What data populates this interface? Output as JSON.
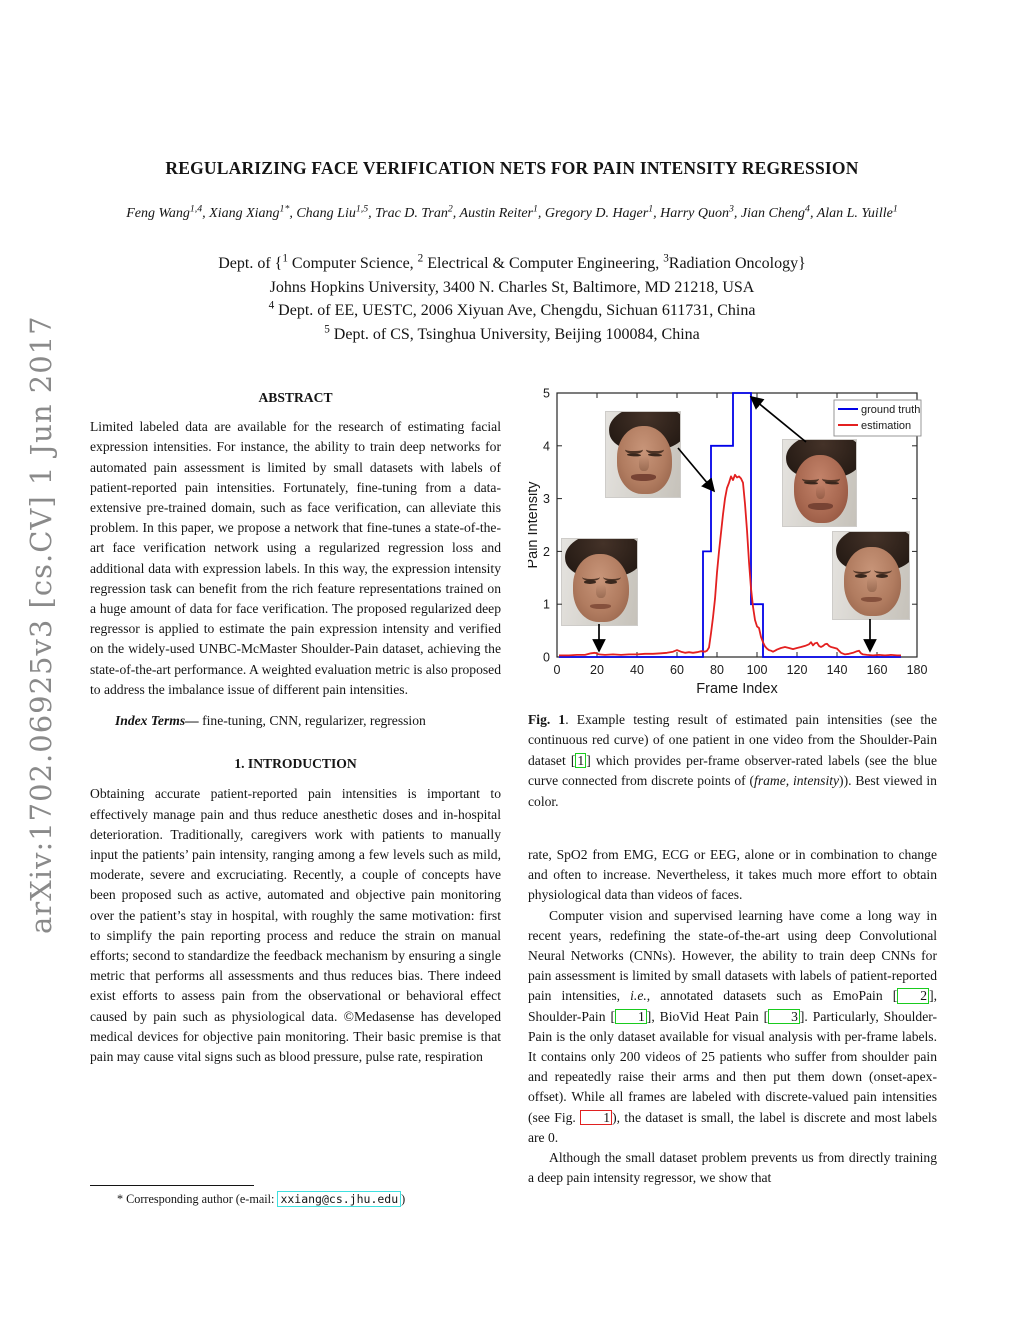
{
  "watermark": {
    "text": "arXiv:1702.06925v3  [cs.CV]  1 Jun 2017"
  },
  "header": {
    "title": "REGULARIZING FACE VERIFICATION NETS FOR PAIN INTENSITY REGRESSION",
    "authors": [
      {
        "name": "Feng Wang",
        "sup": "1,4"
      },
      {
        "name": "Xiang Xiang",
        "sup": "1*"
      },
      {
        "name": "Chang Liu",
        "sup": "1,5"
      },
      {
        "name": "Trac D. Tran",
        "sup": "2"
      },
      {
        "name": "Austin Reiter",
        "sup": "1"
      },
      {
        "name": "Gregory D. Hager",
        "sup": "1"
      },
      {
        "name": "Harry Quon",
        "sup": "3"
      },
      {
        "name": "Jian Cheng",
        "sup": "4"
      },
      {
        "name": "Alan L. Yuille",
        "sup": "1"
      }
    ],
    "affiliations": [
      [
        {
          "t": "Dept. of {"
        },
        {
          "t": "1",
          "sup": true
        },
        {
          "t": " Computer Science, "
        },
        {
          "t": "2",
          "sup": true
        },
        {
          "t": " Electrical & Computer Engineering, "
        },
        {
          "t": "3",
          "sup": true
        },
        {
          "t": "Radiation Oncology}"
        }
      ],
      [
        {
          "t": "Johns Hopkins University, 3400 N. Charles St, Baltimore, MD 21218, USA"
        }
      ],
      [
        {
          "t": "4",
          "sup": true
        },
        {
          "t": " Dept. of EE, UESTC, 2006 Xiyuan Ave, Chengdu, Sichuan 611731, China"
        }
      ],
      [
        {
          "t": "5",
          "sup": true
        },
        {
          "t": " Dept. of CS, Tsinghua University, Beijing 100084, China"
        }
      ]
    ]
  },
  "abstract": {
    "heading": "ABSTRACT",
    "body": "Limited labeled data are available for the research of estimating facial expression intensities. For instance, the ability to train deep networks for automated pain assessment is limited by small datasets with labels of patient-reported pain intensities. Fortunately, fine-tuning from a data-extensive pre-trained domain, such as face verification, can alleviate this problem. In this paper, we propose a network that fine-tunes a state-of-the-art face verification network using a regularized regression loss and additional data with expression labels. In this way, the expression intensity regression task can benefit from the rich feature representations trained on a huge amount of data for face verification. The proposed regularized deep regressor is applied to estimate the pain expression intensity and verified on the widely-used UNBC-McMaster Shoulder-Pain dataset, achieving the state-of-the-art performance. A weighted evaluation metric is also proposed to address the imbalance issue of different pain intensities.",
    "index_terms_label": "Index Terms—",
    "index_terms": " fine-tuning, CNN, regularizer, regression"
  },
  "intro": {
    "heading": "1. INTRODUCTION",
    "para1": "Obtaining accurate patient-reported pain intensities is important to effectively manage pain and thus reduce anesthetic doses and in-hospital deterioration. Traditionally, caregivers work with patients to manually input the patients’ pain intensity, ranging among a few levels such as mild, moderate, severe and excruciating. Recently, a couple of concepts have been proposed such as active, automated and objective pain monitoring over the patient’s stay in hospital, with roughly the same motivation: first to simplify the pain reporting process and reduce the strain on manual efforts; second to standardize the feedback mechanism by ensuring a single metric that performs all assessments and thus reduces bias. There indeed exist efforts to assess pain from the observational or behavioral effect caused by pain such as physiological data. ©Medasense has developed medical devices for objective pain monitoring. Their basic premise is that pain may cause vital signs such as blood pressure, pulse rate, respiration"
  },
  "footnote": {
    "prefix": "* Corresponding author (e-mail: ",
    "email": "xxiang@cs.jhu.edu",
    "suffix": ")"
  },
  "figure": {
    "label": "Fig. 1",
    "caption": [
      {
        "t": "Fig. 1",
        "b": true
      },
      {
        "t": ".  Example testing result of estimated pain intensities (see the continuous red curve) of one patient in one video from the Shoulder-Pain dataset ["
      },
      {
        "t": "1",
        "ref": "green"
      },
      {
        "t": "] which provides per-frame observer-rated labels (see the blue curve connected from discrete points of ("
      },
      {
        "t": "frame, intensity",
        "i": true
      },
      {
        "t": ")). Best viewed in color."
      }
    ],
    "insets": [
      "patient-face-neutral-left",
      "patient-face-onset",
      "patient-face-apex",
      "patient-face-neutral-right"
    ]
  },
  "col2": {
    "p1": [
      {
        "t": "rate, SpO2 from EMG, ECG or EEG, alone or in combination to change and often to increase. Nevertheless, it takes much more effort to obtain physiological data than videos of faces."
      }
    ],
    "p2": [
      {
        "t": "Computer vision and supervised learning have come a long way in recent years, redefining the state-of-the-art using deep Convolutional Neural Networks (CNNs). However, the ability to train deep CNNs for pain assessment is limited by small datasets with labels of patient-reported pain intensities, "
      },
      {
        "t": "i.e.",
        "i": true
      },
      {
        "t": ", annotated datasets such as EmoPain ["
      },
      {
        "t": "2",
        "ref": "green"
      },
      {
        "t": "], Shoulder-Pain ["
      },
      {
        "t": "1",
        "ref": "green"
      },
      {
        "t": "], BioVid Heat Pain ["
      },
      {
        "t": "3",
        "ref": "green"
      },
      {
        "t": "]. Particularly, Shoulder-Pain is the only dataset available for visual analysis with per-frame labels. It contains only 200 videos of 25 patients who suffer from shoulder pain and repeatedly raise their arms and then put them down (onset-apex-offset). While all frames are labeled with discrete-valued pain intensities (see Fig. "
      },
      {
        "t": "1",
        "ref": "red"
      },
      {
        "t": "), the dataset is small, the label is discrete and most labels are 0."
      }
    ],
    "p3": [
      {
        "t": "Although the small dataset problem prevents us from directly training a deep pain intensity regressor, we show that"
      }
    ]
  },
  "chart_data": {
    "type": "line",
    "xlabel": "Frame Index",
    "ylabel": "Pain Intensity",
    "xlim": [
      0,
      180
    ],
    "ylim": [
      0,
      5
    ],
    "xticks": [
      0,
      20,
      40,
      60,
      80,
      100,
      120,
      140,
      160,
      180
    ],
    "yticks": [
      0,
      1,
      2,
      3,
      4,
      5
    ],
    "grid": false,
    "legend_position": "top-right",
    "axis_color": "#262626",
    "series": [
      {
        "name": "ground truth",
        "color": "#0202e8",
        "style": "step",
        "points": [
          [
            1,
            0
          ],
          [
            73,
            0
          ],
          [
            73,
            2
          ],
          [
            77,
            2
          ],
          [
            77,
            4
          ],
          [
            88,
            4
          ],
          [
            88,
            5
          ],
          [
            97,
            5
          ],
          [
            97,
            1
          ],
          [
            103,
            1
          ],
          [
            103,
            0
          ],
          [
            172,
            0
          ]
        ]
      },
      {
        "name": "estimation",
        "color": "#e32020",
        "style": "line",
        "points": [
          [
            1,
            0.03
          ],
          [
            6,
            0.03
          ],
          [
            10,
            0.04
          ],
          [
            14,
            0.04
          ],
          [
            17,
            0.07
          ],
          [
            19,
            0.08
          ],
          [
            21,
            0.05
          ],
          [
            24,
            0.04
          ],
          [
            28,
            0.05
          ],
          [
            32,
            0.04
          ],
          [
            36,
            0.05
          ],
          [
            40,
            0.05
          ],
          [
            44,
            0.06
          ],
          [
            48,
            0.06
          ],
          [
            52,
            0.07
          ],
          [
            55,
            0.08
          ],
          [
            58,
            0.1
          ],
          [
            60,
            0.13
          ],
          [
            62,
            0.1
          ],
          [
            64,
            0.08
          ],
          [
            66,
            0.09
          ],
          [
            68,
            0.08
          ],
          [
            70,
            0.09
          ],
          [
            72,
            0.11
          ],
          [
            74,
            0.1
          ],
          [
            75,
            0.12
          ],
          [
            76,
            0.18
          ],
          [
            77,
            0.45
          ],
          [
            78,
            0.75
          ],
          [
            79,
            1.1
          ],
          [
            80,
            1.6
          ],
          [
            81,
            2.0
          ],
          [
            82,
            2.35
          ],
          [
            83,
            2.7
          ],
          [
            84,
            3.0
          ],
          [
            85,
            3.2
          ],
          [
            86,
            3.3
          ],
          [
            87,
            3.42
          ],
          [
            88,
            3.35
          ],
          [
            89,
            3.45
          ],
          [
            90,
            3.4
          ],
          [
            91,
            3.42
          ],
          [
            92,
            3.38
          ],
          [
            93,
            3.3
          ],
          [
            94,
            2.9
          ],
          [
            95,
            2.4
          ],
          [
            96,
            1.8
          ],
          [
            97,
            1.3
          ],
          [
            98,
            0.95
          ],
          [
            99,
            0.7
          ],
          [
            100,
            0.58
          ],
          [
            101,
            0.55
          ],
          [
            102,
            0.38
          ],
          [
            103,
            0.28
          ],
          [
            104,
            0.2
          ],
          [
            105,
            0.16
          ],
          [
            106,
            0.13
          ],
          [
            107,
            0.12
          ],
          [
            108,
            0.1
          ],
          [
            109,
            0.12
          ],
          [
            110,
            0.14
          ],
          [
            112,
            0.17
          ],
          [
            114,
            0.19
          ],
          [
            116,
            0.17
          ],
          [
            118,
            0.15
          ],
          [
            120,
            0.17
          ],
          [
            122,
            0.19
          ],
          [
            124,
            0.21
          ],
          [
            126,
            0.24
          ],
          [
            127,
            0.28
          ],
          [
            128,
            0.22
          ],
          [
            129,
            0.26
          ],
          [
            130,
            0.27
          ],
          [
            131,
            0.21
          ],
          [
            132,
            0.19
          ],
          [
            133,
            0.21
          ],
          [
            134,
            0.24
          ],
          [
            135,
            0.25
          ],
          [
            136,
            0.21
          ],
          [
            137,
            0.19
          ],
          [
            138,
            0.18
          ],
          [
            140,
            0.16
          ],
          [
            141,
            0.12
          ],
          [
            142,
            0.08
          ],
          [
            144,
            0.05
          ],
          [
            146,
            0.06
          ],
          [
            148,
            0.08
          ],
          [
            150,
            0.11
          ],
          [
            151,
            0.12
          ],
          [
            152,
            0.07
          ],
          [
            153,
            0.05
          ],
          [
            155,
            0.04
          ],
          [
            158,
            0.03
          ],
          [
            161,
            0.04
          ],
          [
            164,
            0.03
          ],
          [
            167,
            0.04
          ],
          [
            170,
            0.03
          ],
          [
            172,
            0.03
          ]
        ]
      }
    ]
  }
}
